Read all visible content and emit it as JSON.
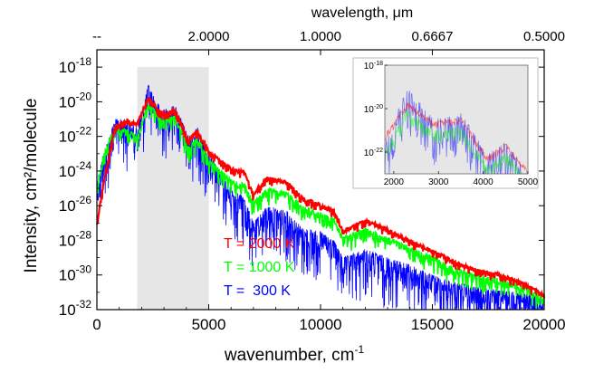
{
  "chart_data": {
    "type": "line",
    "x_axis": {
      "label_main": "wavenumber, cm",
      "label_sup": "-1",
      "range": [
        0,
        20000
      ],
      "ticks": [
        0,
        5000,
        10000,
        15000,
        20000
      ],
      "tick_labels": [
        "0",
        "5000",
        "10000",
        "15000",
        "20000"
      ]
    },
    "top_axis": {
      "label": "wavelength, μm",
      "ticks": [
        0,
        5000,
        10000,
        15000,
        20000
      ],
      "tick_labels": [
        "--",
        "2.0000",
        "1.0000",
        "0.6667",
        "0.5000"
      ]
    },
    "y_axis": {
      "label": "Intensity, cm²/molecule",
      "scale": "log",
      "range": [
        1e-32,
        1e-17
      ],
      "tick_exponents": [
        -32,
        -30,
        -28,
        -26,
        -24,
        -22,
        -20,
        -18
      ],
      "tick_base": "10"
    },
    "highlight_region": {
      "x": [
        1800,
        5000
      ],
      "y": [
        1e-32,
        1e-18
      ]
    },
    "series": [
      {
        "name": "T = 2000 K",
        "color": "#ff0000",
        "envelope": [
          [
            0,
            -27
          ],
          [
            300,
            -24.6
          ],
          [
            800,
            -21.4
          ],
          [
            1300,
            -21
          ],
          [
            1800,
            -21.2
          ],
          [
            2300,
            -19.7
          ],
          [
            2900,
            -20.6
          ],
          [
            3500,
            -20.4
          ],
          [
            4100,
            -22.2
          ],
          [
            4500,
            -21.6
          ],
          [
            5000,
            -22.8
          ],
          [
            6000,
            -23.8
          ],
          [
            6600,
            -24
          ],
          [
            7000,
            -25.3
          ],
          [
            7600,
            -24.3
          ],
          [
            8500,
            -24.6
          ],
          [
            9200,
            -25.5
          ],
          [
            10000,
            -25.9
          ],
          [
            10600,
            -26.2
          ],
          [
            11000,
            -27.4
          ],
          [
            12000,
            -26.8
          ],
          [
            13000,
            -27.3
          ],
          [
            14000,
            -28
          ],
          [
            15000,
            -28.5
          ],
          [
            16000,
            -29.2
          ],
          [
            17000,
            -29.7
          ],
          [
            18000,
            -29.9
          ],
          [
            19000,
            -30.4
          ],
          [
            20000,
            -31.1
          ]
        ],
        "spread": 0.5
      },
      {
        "name": "T = 1000 K",
        "color": "#00ff00",
        "envelope": [
          [
            0,
            -25
          ],
          [
            300,
            -23
          ],
          [
            800,
            -21.4
          ],
          [
            1300,
            -21.5
          ],
          [
            1800,
            -22
          ],
          [
            2300,
            -20
          ],
          [
            2900,
            -21
          ],
          [
            3500,
            -20.8
          ],
          [
            4100,
            -22.6
          ],
          [
            4500,
            -22
          ],
          [
            5000,
            -23.3
          ],
          [
            6000,
            -24.5
          ],
          [
            6600,
            -24.7
          ],
          [
            7000,
            -25.8
          ],
          [
            7600,
            -25
          ],
          [
            8500,
            -25.2
          ],
          [
            9200,
            -26
          ],
          [
            10000,
            -26.4
          ],
          [
            10600,
            -26.7
          ],
          [
            11000,
            -27.8
          ],
          [
            12000,
            -27.3
          ],
          [
            13000,
            -27.8
          ],
          [
            14000,
            -28.4
          ],
          [
            15000,
            -28.9
          ],
          [
            16000,
            -29.6
          ],
          [
            17000,
            -30
          ],
          [
            18000,
            -30.2
          ],
          [
            19000,
            -30.6
          ],
          [
            20000,
            -31.2
          ]
        ],
        "spread": 1.0
      },
      {
        "name": "T =  300 K",
        "color": "#0000ff",
        "envelope": [
          [
            0,
            -24.5
          ],
          [
            300,
            -23
          ],
          [
            800,
            -21
          ],
          [
            1300,
            -21
          ],
          [
            1800,
            -21.5
          ],
          [
            2300,
            -19
          ],
          [
            2900,
            -20.5
          ],
          [
            3500,
            -20.2
          ],
          [
            4100,
            -22
          ],
          [
            4500,
            -21.5
          ],
          [
            5000,
            -23
          ],
          [
            6000,
            -25
          ],
          [
            6600,
            -25.5
          ],
          [
            7000,
            -27
          ],
          [
            7600,
            -26
          ],
          [
            8500,
            -26.3
          ],
          [
            9200,
            -27.3
          ],
          [
            10000,
            -27.5
          ],
          [
            10600,
            -28
          ],
          [
            11000,
            -29
          ],
          [
            12000,
            -28.5
          ],
          [
            13000,
            -29
          ],
          [
            14000,
            -29.4
          ],
          [
            15000,
            -30
          ],
          [
            16000,
            -30.4
          ],
          [
            17000,
            -30.7
          ],
          [
            18000,
            -30.9
          ],
          [
            19000,
            -31
          ],
          [
            20000,
            -31.3
          ]
        ],
        "spread": 3.0
      }
    ],
    "legend": {
      "placement": "lower-left",
      "entries": [
        "T = 2000 K",
        "T = 1000 K",
        "T =  300 K"
      ],
      "colors": [
        "#ff0000",
        "#00ff00",
        "#0000ff"
      ]
    },
    "inset": {
      "placement": "upper-right",
      "x_range": [
        1800,
        5000
      ],
      "x_ticks": [
        2000,
        3000,
        4000,
        5000
      ],
      "x_tick_labels": [
        "2000",
        "3000",
        "4000",
        "5000"
      ],
      "y_range": [
        1e-23,
        1e-18
      ],
      "tick_exponents": [
        -18,
        -20,
        -22
      ]
    }
  }
}
